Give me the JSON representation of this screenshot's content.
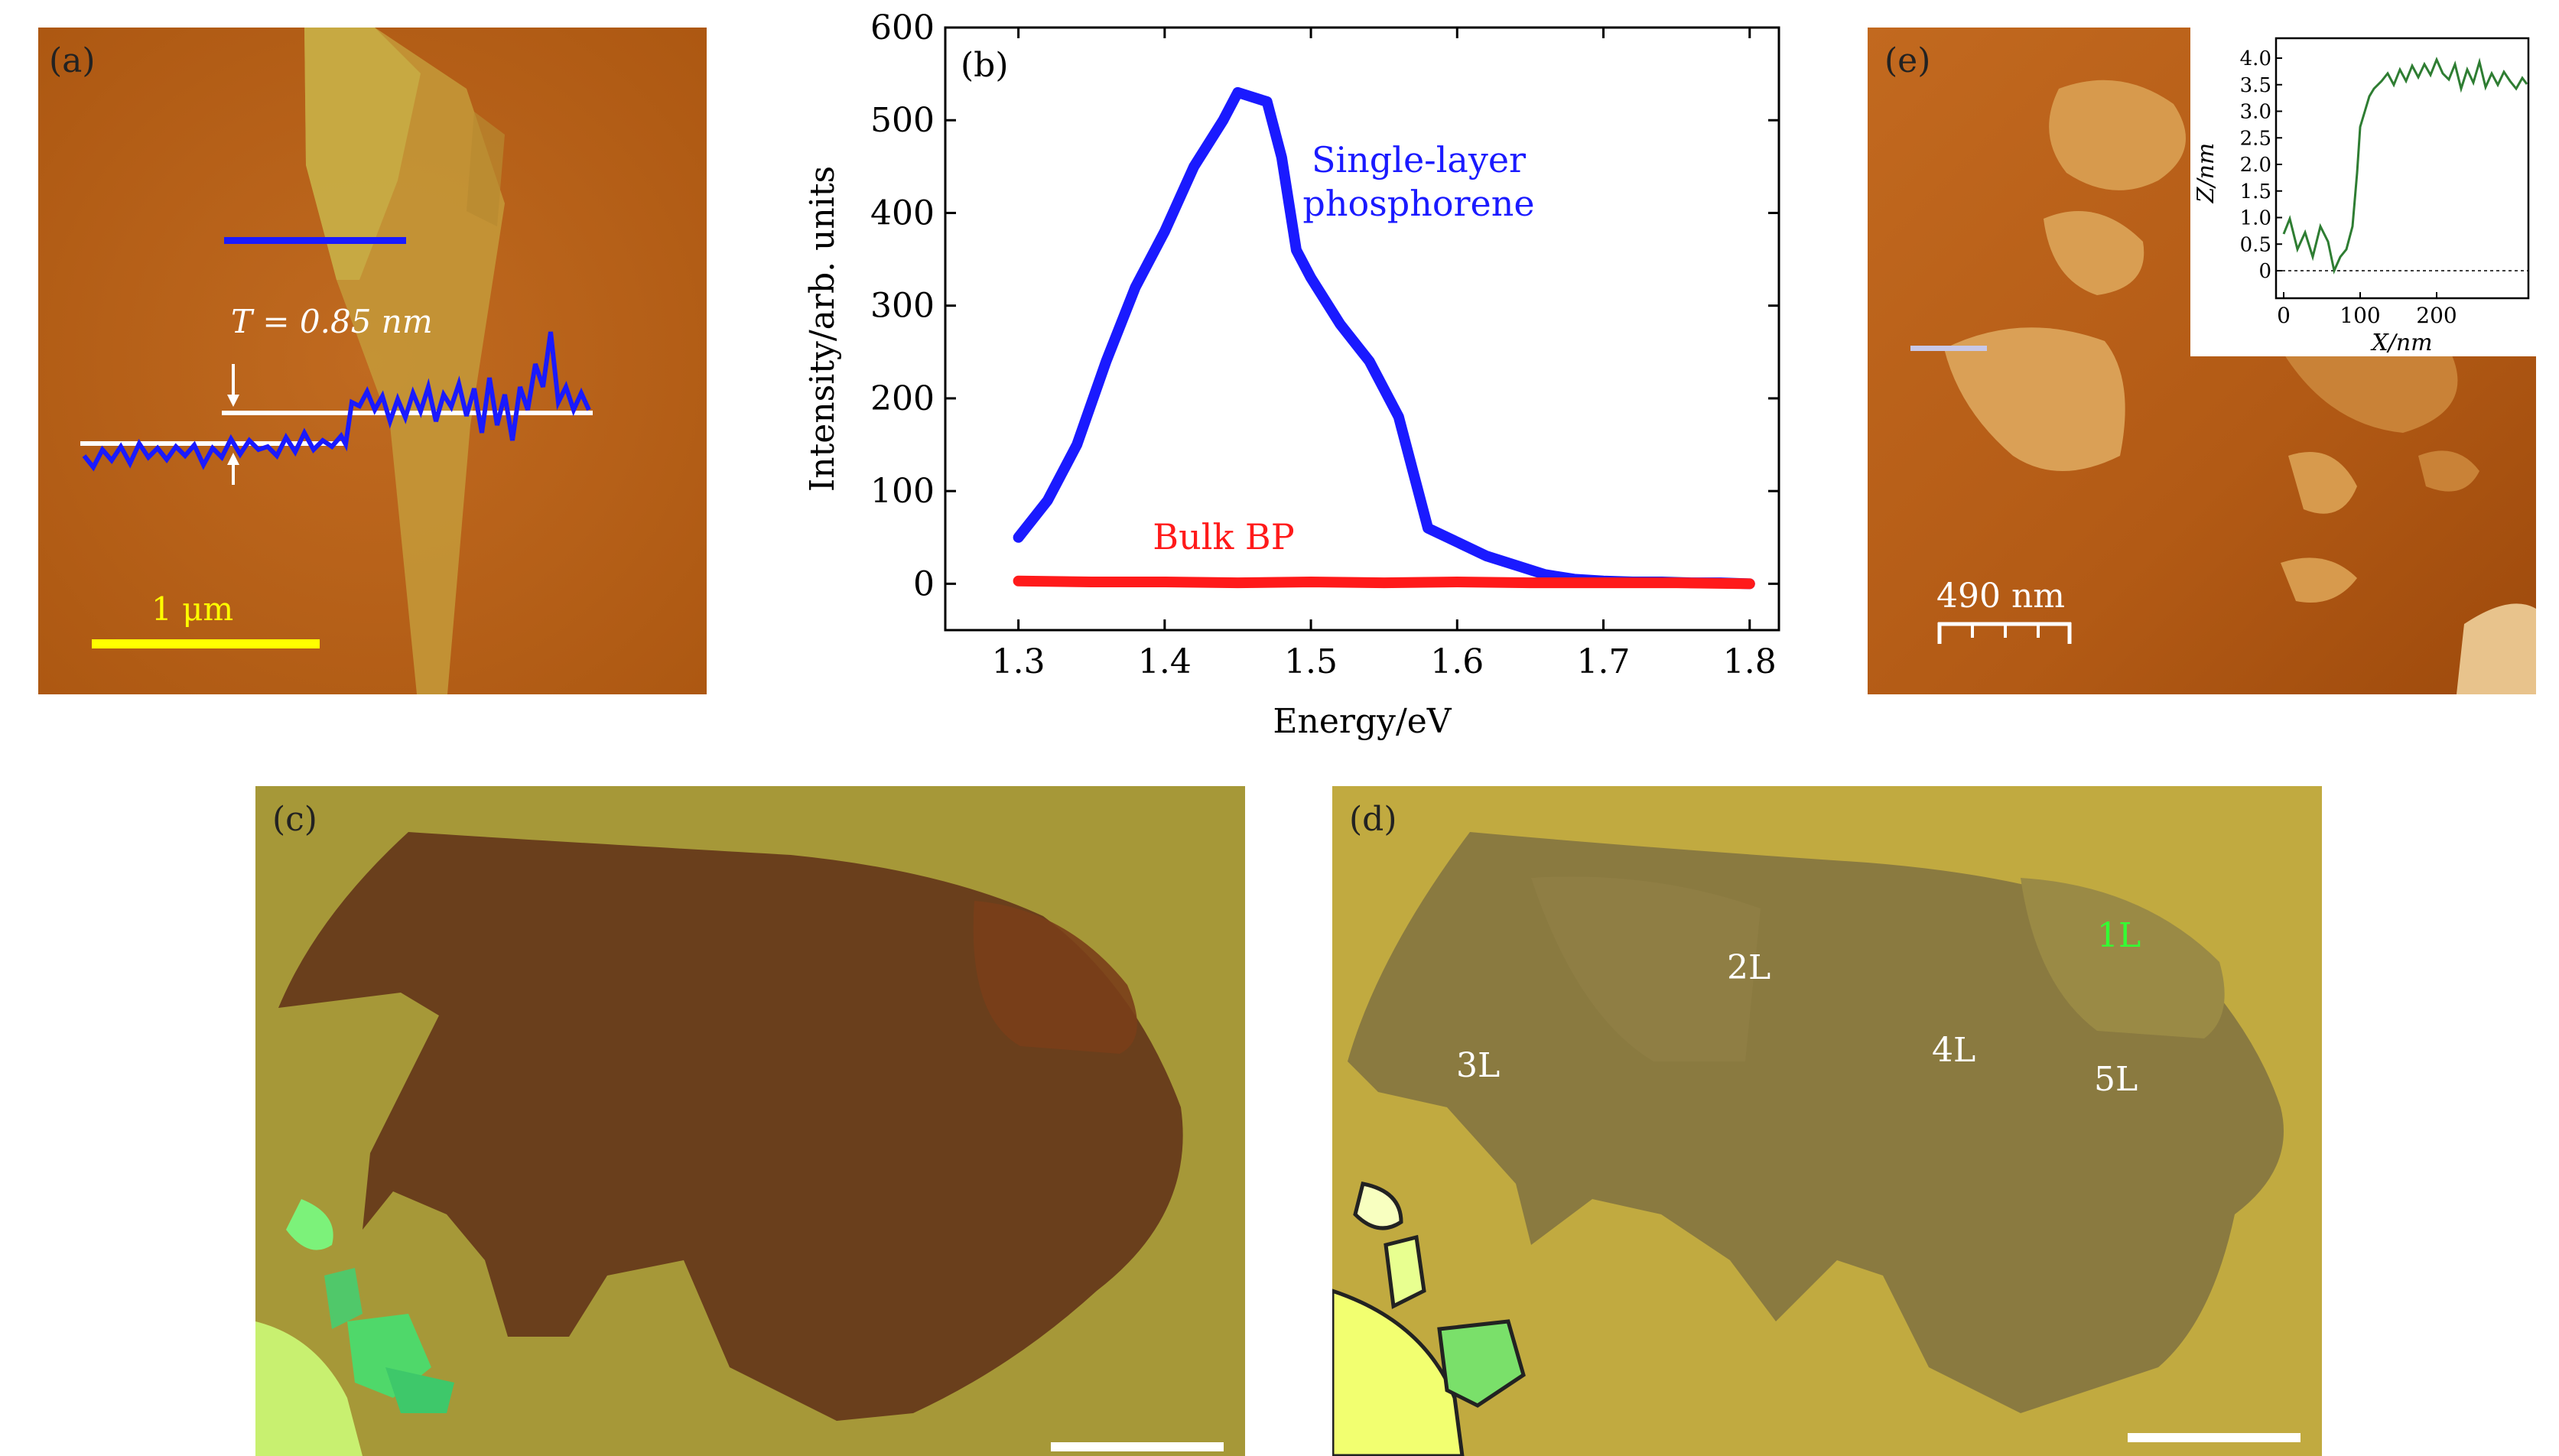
{
  "panels": {
    "a": {
      "label": "(a)",
      "thickness_label": "T = 0.85 nm",
      "scale_bar_label": "1 μm",
      "profile_line_color": "#1a1aff",
      "scale_bar_color": "#ffff00"
    },
    "c": {
      "label": "(c)"
    },
    "d": {
      "label": "(d)",
      "layer_labels": [
        {
          "text": "3L",
          "color": "#ffffff"
        },
        {
          "text": "2L",
          "color": "#ffffff"
        },
        {
          "text": "4L",
          "color": "#ffffff"
        },
        {
          "text": "5L",
          "color": "#ffffff"
        },
        {
          "text": "1L",
          "color": "#33ff33"
        }
      ]
    },
    "e": {
      "label": "(e)",
      "scale_bar_label": "490 nm",
      "inset": {
        "xlabel": "X/nm",
        "ylabel": "Z/nm",
        "x_ticks": [
          "0",
          "100",
          "200"
        ],
        "y_ticks": [
          "0",
          "0.5",
          "1.0",
          "1.5",
          "2.0",
          "2.5",
          "3.0",
          "3.5",
          "4.0"
        ],
        "line_color": "#2e7d32"
      }
    }
  },
  "chart_data": {
    "type": "line",
    "panel_label": "(b)",
    "xlabel": "Energy/eV",
    "ylabel": "Intensity/arb. units",
    "xlim": [
      1.25,
      1.82
    ],
    "ylim": [
      -50,
      600
    ],
    "x_ticks": [
      1.3,
      1.4,
      1.5,
      1.6,
      1.7,
      1.8
    ],
    "y_ticks": [
      0,
      100,
      200,
      300,
      400,
      500,
      600
    ],
    "grid": false,
    "series": [
      {
        "name": "Single-layer phosphorene",
        "label_lines": [
          "Single-layer",
          "phosphorene"
        ],
        "color": "#1a1aff",
        "x": [
          1.3,
          1.32,
          1.34,
          1.36,
          1.38,
          1.4,
          1.42,
          1.44,
          1.45,
          1.46,
          1.47,
          1.48,
          1.49,
          1.5,
          1.52,
          1.54,
          1.56,
          1.57,
          1.58,
          1.6,
          1.62,
          1.64,
          1.66,
          1.68,
          1.7,
          1.72,
          1.74,
          1.76,
          1.78,
          1.8
        ],
        "y": [
          50,
          90,
          150,
          240,
          320,
          380,
          450,
          500,
          530,
          525,
          520,
          460,
          360,
          330,
          280,
          240,
          180,
          120,
          60,
          45,
          30,
          20,
          10,
          5,
          3,
          2,
          2,
          1,
          1,
          0
        ]
      },
      {
        "name": "Bulk BP",
        "label_lines": [
          "Bulk BP"
        ],
        "color": "#ff1a1a",
        "x": [
          1.3,
          1.35,
          1.4,
          1.45,
          1.5,
          1.55,
          1.6,
          1.65,
          1.7,
          1.75,
          1.8
        ],
        "y": [
          3,
          2,
          2,
          1,
          2,
          1,
          2,
          1,
          1,
          1,
          0
        ]
      }
    ]
  }
}
